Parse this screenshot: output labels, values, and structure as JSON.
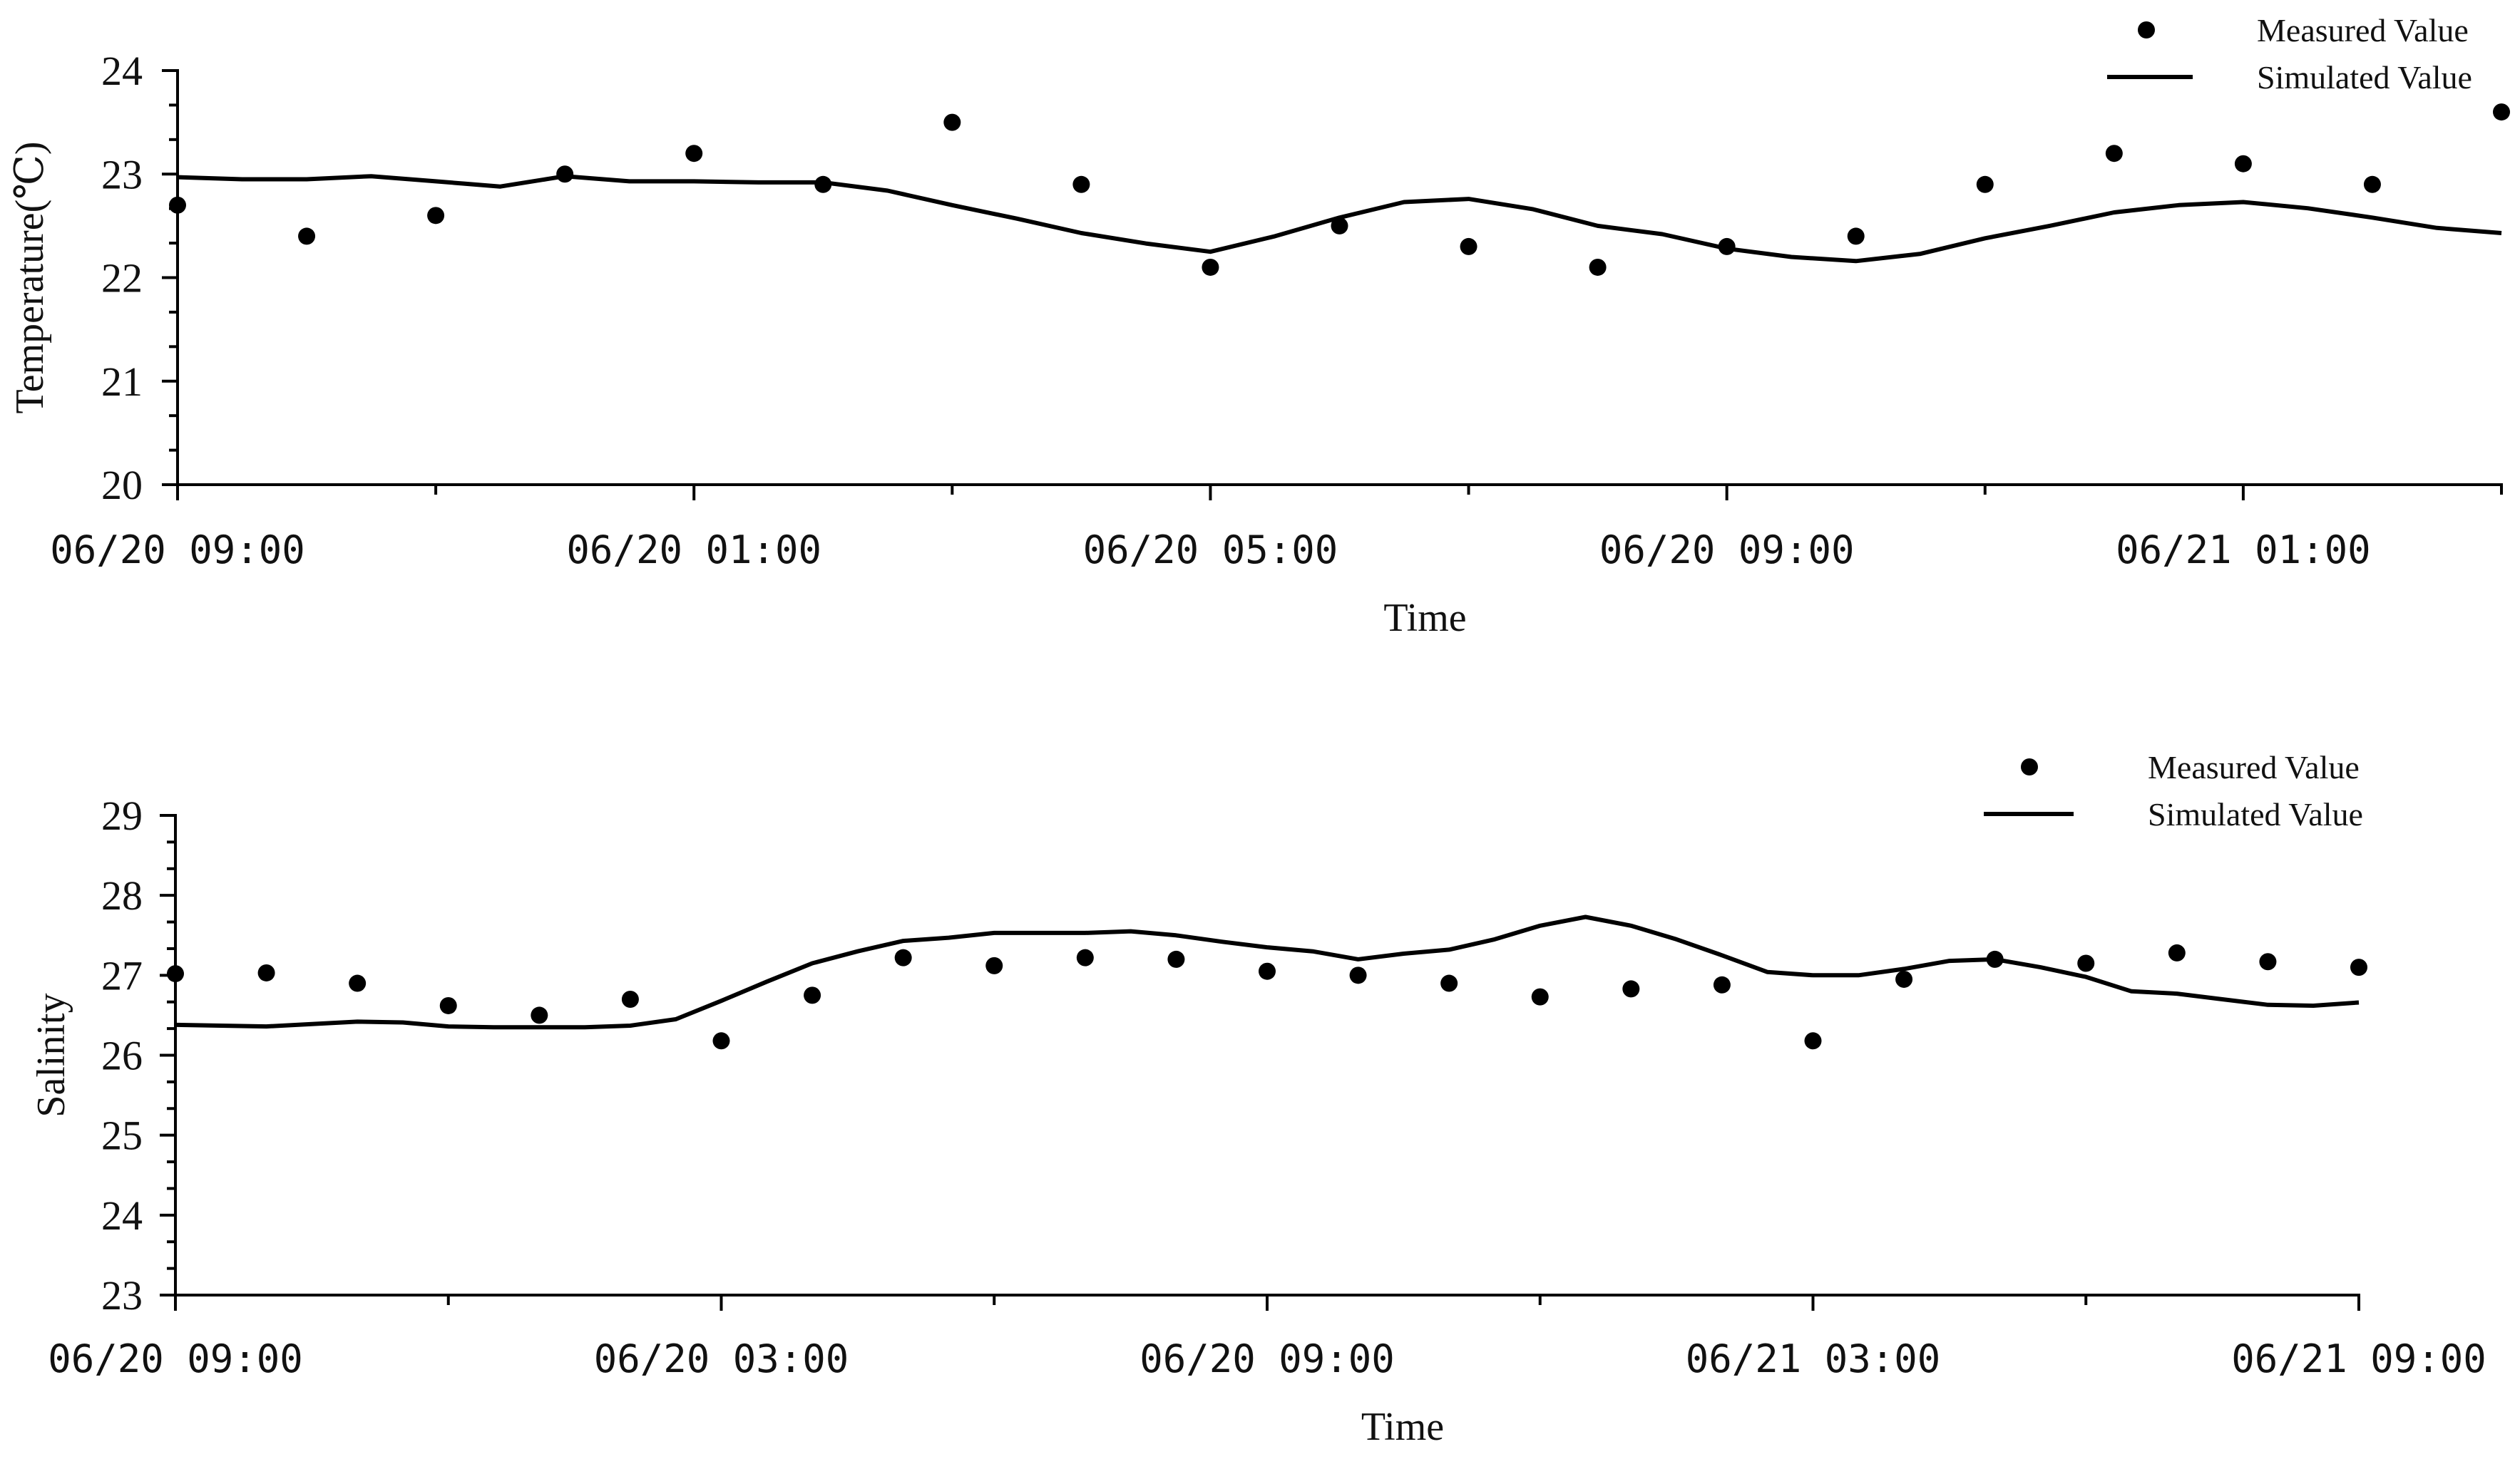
{
  "chart_data": [
    {
      "type": "line",
      "title": "",
      "xlabel": "Time",
      "ylabel": "Temperature(℃)",
      "ylim": [
        20,
        24
      ],
      "yticks": [
        20,
        21,
        22,
        23,
        24
      ],
      "xlim": [
        0,
        36
      ],
      "xtick_labels": [
        {
          "x": 0,
          "label": "06/20  09:00"
        },
        {
          "x": 8,
          "label": "06/20  01:00"
        },
        {
          "x": 16,
          "label": "06/20  05:00"
        },
        {
          "x": 24,
          "label": "06/20  09:00"
        },
        {
          "x": 32,
          "label": "06/21  01:00"
        }
      ],
      "minor_xticks": [
        4,
        12,
        20,
        28,
        36
      ],
      "legend_position": "top-right",
      "series": [
        {
          "name": "Measured Value",
          "style": "markers",
          "x": [
            0,
            2,
            4,
            6,
            8,
            10,
            12,
            14,
            16,
            18,
            20,
            22,
            24,
            26,
            28,
            30,
            32,
            34,
            36
          ],
          "values": [
            22.7,
            22.4,
            22.6,
            23.0,
            23.2,
            22.9,
            23.5,
            22.9,
            22.1,
            22.5,
            22.3,
            22.1,
            22.3,
            22.4,
            22.9,
            23.2,
            23.1,
            22.9,
            23.6
          ]
        },
        {
          "name": "Simulated Value",
          "style": "line",
          "x": [
            0,
            1,
            2,
            3,
            4,
            5,
            6,
            7,
            8,
            9,
            10,
            11,
            12,
            13,
            14,
            15,
            16,
            17,
            18,
            19,
            20,
            21,
            22,
            23,
            24,
            25,
            26,
            27,
            28,
            29,
            30,
            31,
            32,
            33,
            34,
            35,
            36
          ],
          "values": [
            22.97,
            22.95,
            22.95,
            22.98,
            22.93,
            22.88,
            22.98,
            22.93,
            22.93,
            22.92,
            22.92,
            22.84,
            22.7,
            22.57,
            22.43,
            22.33,
            22.25,
            22.4,
            22.58,
            22.73,
            22.76,
            22.66,
            22.5,
            22.42,
            22.28,
            22.2,
            22.16,
            22.23,
            22.38,
            22.5,
            22.63,
            22.7,
            22.73,
            22.67,
            22.58,
            22.48,
            22.43
          ]
        }
      ]
    },
    {
      "type": "line",
      "title": "",
      "xlabel": "Time",
      "ylabel": "Salinity",
      "ylim": [
        23,
        29
      ],
      "yticks": [
        23,
        24,
        25,
        26,
        27,
        28,
        29
      ],
      "xlim": [
        0,
        24
      ],
      "xtick_labels": [
        {
          "x": 0,
          "label": "06/20  09:00"
        },
        {
          "x": 6,
          "label": "06/20  03:00"
        },
        {
          "x": 12,
          "label": "06/20  09:00"
        },
        {
          "x": 18,
          "label": "06/21  03:00"
        },
        {
          "x": 24,
          "label": "06/21  09:00"
        }
      ],
      "minor_xticks": [
        3,
        9,
        15,
        21
      ],
      "legend_position": "top-right",
      "series": [
        {
          "name": "Measured Value",
          "style": "markers",
          "x": [
            0,
            1,
            2,
            3,
            4,
            5,
            6,
            7,
            8,
            9,
            10,
            11,
            12,
            13,
            14,
            15,
            16,
            17,
            18,
            19,
            20,
            21,
            22,
            23,
            24
          ],
          "values": [
            27.02,
            27.03,
            26.9,
            26.62,
            26.5,
            26.7,
            26.18,
            26.75,
            27.22,
            27.12,
            27.22,
            27.2,
            27.05,
            27.0,
            26.9,
            26.73,
            26.83,
            26.88,
            26.18,
            26.95,
            27.2,
            27.15,
            27.28,
            27.17,
            27.1
          ]
        },
        {
          "name": "Simulated Value",
          "style": "line",
          "x": [
            0,
            0.5,
            1,
            1.5,
            2,
            2.5,
            3,
            3.5,
            4,
            4.5,
            5,
            5.5,
            6,
            6.5,
            7,
            7.5,
            8,
            8.5,
            9,
            9.5,
            10,
            10.5,
            11,
            11.5,
            12,
            12.5,
            13,
            13.5,
            14,
            14.5,
            15,
            15.5,
            16,
            16.5,
            17,
            17.5,
            18,
            18.5,
            19,
            19.5,
            20,
            20.5,
            21,
            21.5,
            22,
            22.5,
            23,
            23.5,
            24
          ],
          "values": [
            26.38,
            26.37,
            26.36,
            26.39,
            26.42,
            26.41,
            26.36,
            26.35,
            26.35,
            26.35,
            26.37,
            26.45,
            26.68,
            26.92,
            27.15,
            27.3,
            27.43,
            27.47,
            27.53,
            27.53,
            27.53,
            27.55,
            27.5,
            27.42,
            27.35,
            27.3,
            27.2,
            27.27,
            27.32,
            27.45,
            27.62,
            27.73,
            27.62,
            27.45,
            27.25,
            27.04,
            27.0,
            27.0,
            27.08,
            27.18,
            27.2,
            27.1,
            26.98,
            26.8,
            26.77,
            26.7,
            26.63,
            26.62,
            26.66
          ]
        }
      ]
    }
  ]
}
